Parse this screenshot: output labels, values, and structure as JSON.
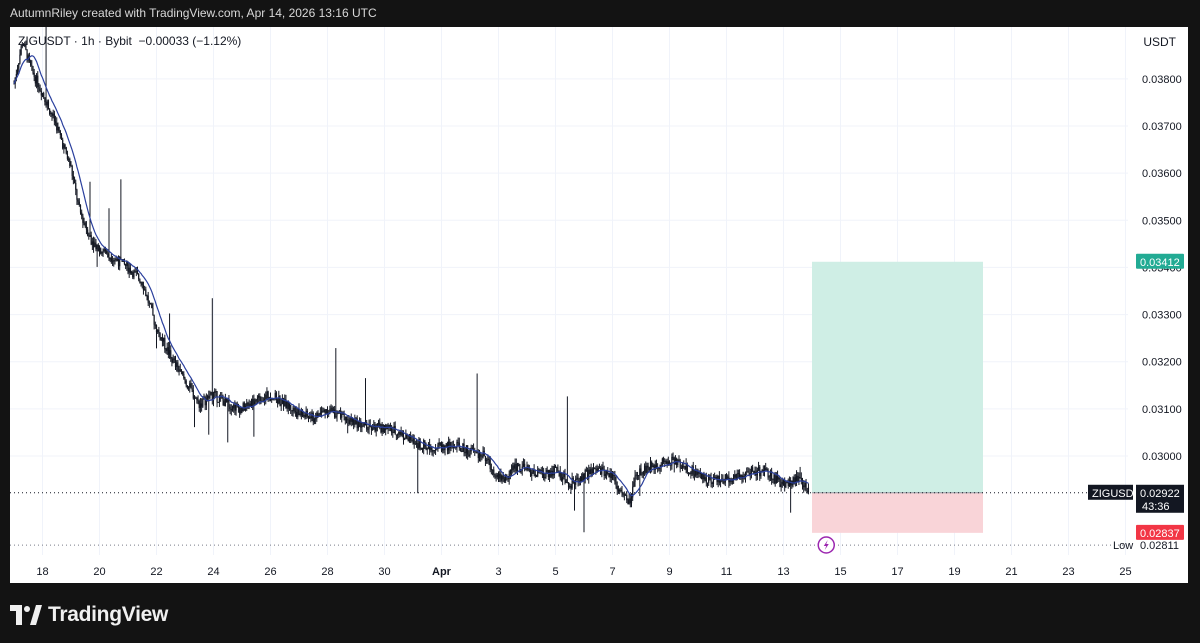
{
  "header": {
    "attribution": "AutumnRiley created with TradingView.com, Apr 14, 2026 13:16 UTC"
  },
  "legend": {
    "symbol": "ZIGUSDT",
    "interval": "1h",
    "exchange": "Bybit",
    "change": "−0.00033 (−1.12%)",
    "separator": "·"
  },
  "currency": "USDT",
  "footer": {
    "logo_text": "TradingView"
  },
  "colors": {
    "background": "#131313",
    "panel": "#ffffff",
    "candle": "#131722",
    "moving_average": "#2a3f9d",
    "target_zone": "#cfeee5",
    "stop_zone": "#f9d4d8",
    "target_label": "#22ab94",
    "stop_label": "#f23645",
    "grid": "#f0f3fa"
  },
  "chart_data": {
    "type": "candlestick",
    "title": "ZIGUSDT · 1h · Bybit",
    "y_unit": "USDT",
    "ylim": [
      0.0279,
      0.0391
    ],
    "y_ticks": [
      0.03,
      0.031,
      0.032,
      0.033,
      0.034,
      0.035,
      0.036,
      0.037,
      0.038
    ],
    "y_tick_labels": [
      "0.03000",
      "0.03100",
      "0.03200",
      "0.03300",
      "0.03400",
      "0.03500",
      "0.03600",
      "0.03700",
      "0.03800"
    ],
    "x_start": "Mar 17",
    "x_end": "Apr 25",
    "x_ticks": [
      {
        "label": "18",
        "day": 1
      },
      {
        "label": "20",
        "day": 3
      },
      {
        "label": "22",
        "day": 5
      },
      {
        "label": "24",
        "day": 7
      },
      {
        "label": "26",
        "day": 9
      },
      {
        "label": "28",
        "day": 11
      },
      {
        "label": "30",
        "day": 13
      },
      {
        "label": "Apr",
        "day": 15
      },
      {
        "label": "3",
        "day": 17
      },
      {
        "label": "5",
        "day": 19
      },
      {
        "label": "7",
        "day": 21
      },
      {
        "label": "9",
        "day": 23
      },
      {
        "label": "11",
        "day": 25
      },
      {
        "label": "13",
        "day": 27
      },
      {
        "label": "15",
        "day": 29
      },
      {
        "label": "17",
        "day": 31
      },
      {
        "label": "19",
        "day": 33
      },
      {
        "label": "21",
        "day": 35
      },
      {
        "label": "23",
        "day": 37
      },
      {
        "label": "25",
        "day": 39
      }
    ],
    "price_path": [
      [
        0.0,
        0.0379
      ],
      [
        0.3,
        0.0388
      ],
      [
        0.6,
        0.0382
      ],
      [
        1.0,
        0.0377
      ],
      [
        1.5,
        0.037
      ],
      [
        2.0,
        0.0361
      ],
      [
        2.3,
        0.0352
      ],
      [
        2.7,
        0.0346
      ],
      [
        3.0,
        0.0344
      ],
      [
        3.5,
        0.0342
      ],
      [
        4.0,
        0.034
      ],
      [
        4.5,
        0.0337
      ],
      [
        5.0,
        0.0327
      ],
      [
        5.5,
        0.0321
      ],
      [
        6.0,
        0.0316
      ],
      [
        6.5,
        0.0311
      ],
      [
        7.0,
        0.0313
      ],
      [
        7.5,
        0.0311
      ],
      [
        8.0,
        0.031
      ],
      [
        8.5,
        0.0312
      ],
      [
        9.0,
        0.0313
      ],
      [
        9.5,
        0.0311
      ],
      [
        10.0,
        0.0309
      ],
      [
        10.5,
        0.0308
      ],
      [
        11.0,
        0.031
      ],
      [
        11.5,
        0.0308
      ],
      [
        12.0,
        0.0307
      ],
      [
        12.5,
        0.0306
      ],
      [
        13.0,
        0.0306
      ],
      [
        13.5,
        0.0305
      ],
      [
        14.0,
        0.0303
      ],
      [
        14.5,
        0.0302
      ],
      [
        15.0,
        0.0302
      ],
      [
        15.5,
        0.0302
      ],
      [
        16.0,
        0.0301
      ],
      [
        16.5,
        0.03
      ],
      [
        16.8,
        0.0297
      ],
      [
        17.2,
        0.0295
      ],
      [
        17.6,
        0.0298
      ],
      [
        18.0,
        0.0297
      ],
      [
        18.5,
        0.0296
      ],
      [
        19.0,
        0.0297
      ],
      [
        19.5,
        0.0294
      ],
      [
        20.0,
        0.0296
      ],
      [
        20.5,
        0.0297
      ],
      [
        21.0,
        0.0296
      ],
      [
        21.3,
        0.0292
      ],
      [
        21.6,
        0.029
      ],
      [
        21.8,
        0.0295
      ],
      [
        22.0,
        0.0297
      ],
      [
        22.5,
        0.0298
      ],
      [
        23.0,
        0.0299
      ],
      [
        23.5,
        0.0298
      ],
      [
        24.0,
        0.0296
      ],
      [
        24.5,
        0.0295
      ],
      [
        25.0,
        0.0295
      ],
      [
        25.5,
        0.0296
      ],
      [
        26.0,
        0.0297
      ],
      [
        26.5,
        0.0296
      ],
      [
        27.0,
        0.0294
      ],
      [
        27.5,
        0.0295
      ],
      [
        27.9,
        0.02922
      ]
    ],
    "moving_average": {
      "name": "",
      "color": "#2a3f9d"
    },
    "position": {
      "type": "long",
      "start_day": 28.0,
      "end_day": 34.0,
      "entry": 0.02922,
      "target": 0.03412,
      "stop": 0.02837
    },
    "last_price": {
      "value": 0.02922,
      "label": "0.02922",
      "countdown": "43:36",
      "symbol": "ZIGUSDT"
    },
    "target_label": "0.03412",
    "stop_label": "0.02837",
    "low": {
      "label": "Low",
      "value": 0.02811,
      "text": "0.02811"
    },
    "event_icon_day": 28.5
  }
}
